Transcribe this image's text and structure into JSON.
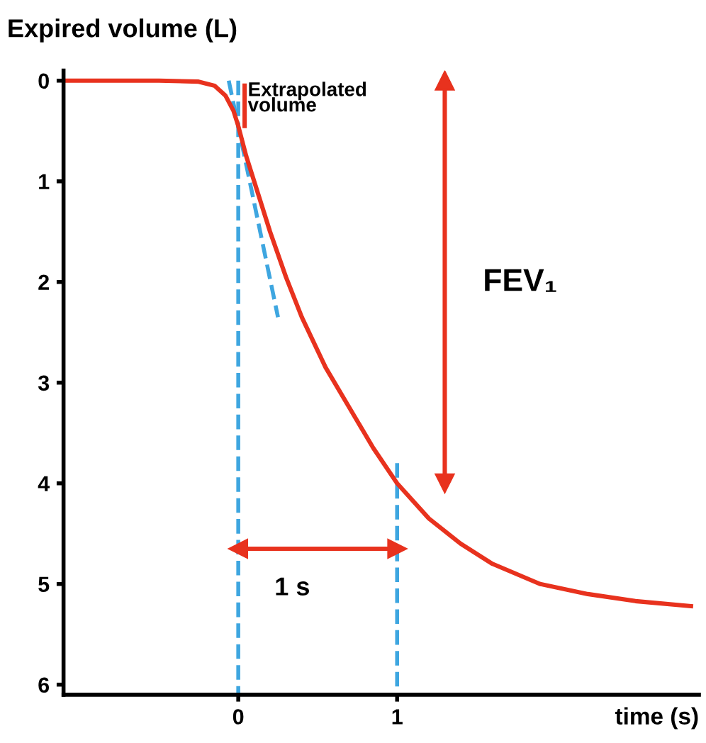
{
  "chart_data": {
    "type": "line",
    "ylabel": "Expired volume (L)",
    "xlabel": "time (s)",
    "xlim": [
      -1.1,
      2.9
    ],
    "ylim": [
      6.1,
      -0.1
    ],
    "xticks": [
      0,
      1
    ],
    "yticks": [
      0,
      1,
      2,
      3,
      4,
      5,
      6
    ],
    "grid": false,
    "series": [
      {
        "color": "#3ea6e0",
        "x": [
          0,
          0
        ],
        "values": [
          0,
          6.1
        ],
        "line_style": "dashed",
        "marker": "none"
      },
      {
        "color": "#3ea6e0",
        "x": [
          1,
          1
        ],
        "values": [
          3.8,
          6.1
        ],
        "line_style": "dashed",
        "marker": "none"
      },
      {
        "color": "#3ea6e0",
        "x": [
          -0.06,
          0.25
        ],
        "values": [
          0,
          2.35
        ],
        "line_style": "dashed",
        "marker": "none"
      },
      {
        "color": "#e8321e",
        "x": [
          -1.1,
          -0.5,
          -0.25,
          -0.15,
          -0.08,
          -0.03,
          0,
          0.05,
          0.1,
          0.2,
          0.3,
          0.4,
          0.55,
          0.7,
          0.85,
          1.0,
          1.2,
          1.4,
          1.6,
          1.9,
          2.2,
          2.5,
          2.85
        ],
        "values": [
          0,
          0,
          0.01,
          0.05,
          0.15,
          0.3,
          0.45,
          0.75,
          1.0,
          1.5,
          1.95,
          2.35,
          2.85,
          3.25,
          3.65,
          4.0,
          4.35,
          4.6,
          4.8,
          5.0,
          5.1,
          5.17,
          5.22
        ],
        "line_style": "solid",
        "marker": "none"
      },
      {
        "color": "#e8321e",
        "x": [
          1.3,
          1.3
        ],
        "values": [
          0,
          4.0
        ],
        "line_style": "solid",
        "marker": "triangle"
      },
      {
        "color": "#e8321e",
        "x": [
          0,
          1
        ],
        "values": [
          4.65,
          4.65
        ],
        "line_style": "solid",
        "marker": "triangle"
      },
      {
        "color": "#e8321e",
        "x": [
          0.04,
          0.04
        ],
        "values": [
          0.05,
          0.45
        ],
        "line_style": "solid",
        "marker": "none"
      }
    ],
    "annotations": [
      "Extrapolated\nvolume",
      "FEV₁",
      "1 s"
    ]
  }
}
